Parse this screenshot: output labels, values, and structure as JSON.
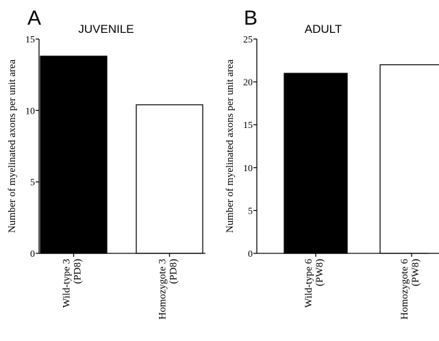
{
  "chart_data": [
    {
      "type": "bar",
      "panel_letter": "A",
      "title": "JUVENILE",
      "ylabel": "Number of myelinated axons per unit area",
      "xlabel": "",
      "ylim": [
        0,
        15
      ],
      "yticks": [
        0,
        5,
        10,
        15
      ],
      "categories": [
        [
          "Wild-type 3",
          "(PD8)"
        ],
        [
          "Homozygote 3",
          "(PD8)"
        ]
      ],
      "values": [
        13.8,
        10.4
      ],
      "bar_colors": [
        "#000000",
        "#ffffff"
      ],
      "grid": false
    },
    {
      "type": "bar",
      "panel_letter": "B",
      "title": "ADULT",
      "ylabel": "Number of myelinated axons per unit area",
      "xlabel": "",
      "ylim": [
        0,
        25
      ],
      "yticks": [
        0,
        5,
        10,
        15,
        20,
        25
      ],
      "categories": [
        [
          "Wild-type 6",
          "(PW8)"
        ],
        [
          "Homozygote 6",
          "(PW8)"
        ]
      ],
      "values": [
        21.0,
        22.0
      ],
      "bar_colors": [
        "#000000",
        "#ffffff"
      ],
      "grid": false
    }
  ]
}
